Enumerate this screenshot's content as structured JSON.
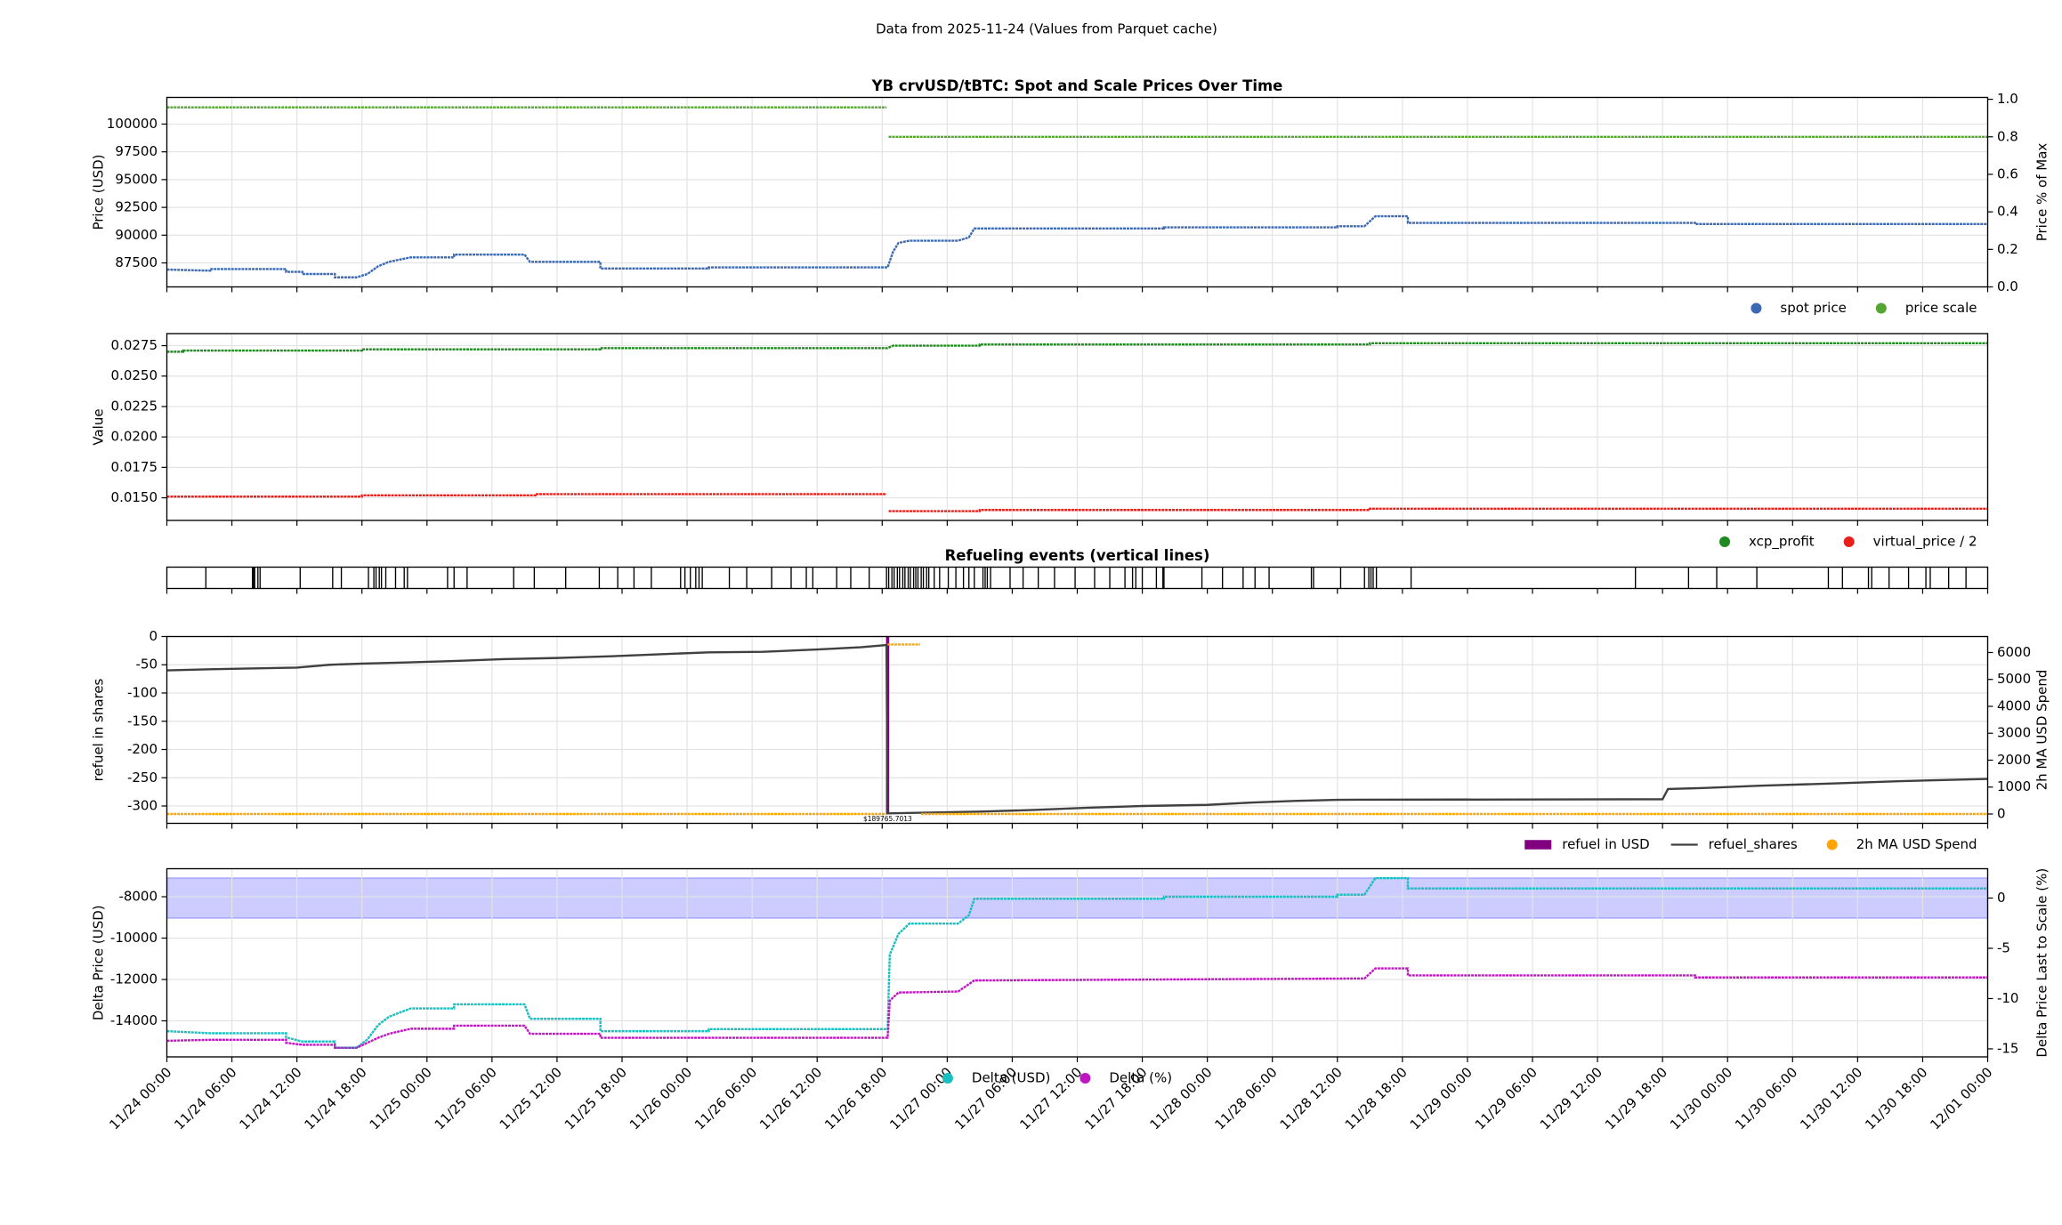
{
  "title": "Data from 2025-11-24 (Values from Parquet cache)",
  "chart_data": [
    {
      "type": "line",
      "title": "YB crvUSD/tBTC: Spot and Scale Prices Over Time",
      "ylabel": "Price (USD)",
      "y2label": "Price % of Max",
      "xlim": [
        0,
        168
      ],
      "ylim": [
        85340,
        102400
      ],
      "yticks": [
        87500,
        90000,
        92500,
        95000,
        97500,
        100000
      ],
      "y2lim": [
        0,
        1.01
      ],
      "y2ticks": [
        {
          "value": 0,
          "label": "0.0"
        },
        0.2,
        0.4,
        0.6,
        0.8,
        {
          "value": 1,
          "label": "1.0"
        }
      ],
      "grid": true,
      "legend": "below right",
      "series": [
        {
          "name": "spot price",
          "color": "#3b6ab3",
          "legend_marker": "dot",
          "x": [
            0,
            4,
            4,
            11,
            11,
            12.5,
            12.5,
            15.5,
            15.5,
            17.5,
            18.5,
            19.5,
            20.5,
            22.5,
            26.5,
            26.5,
            33,
            33.5,
            40,
            40,
            50,
            50,
            66.5,
            67,
            67.5,
            68.5,
            73,
            74,
            74.5,
            92,
            92,
            108,
            108,
            110.5,
            111.5,
            114.5,
            114.5,
            141,
            141,
            168
          ],
          "values": [
            86900,
            86800,
            86950,
            86950,
            86700,
            86700,
            86500,
            86500,
            86200,
            86200,
            86500,
            87200,
            87600,
            88000,
            88000,
            88250,
            88250,
            87600,
            87600,
            87000,
            87000,
            87100,
            87100,
            88500,
            89300,
            89500,
            89500,
            89800,
            90600,
            90600,
            90700,
            90700,
            90800,
            90800,
            91700,
            91700,
            91100,
            91100,
            91000,
            91000
          ]
        },
        {
          "name": "price scale",
          "color": "#55a630",
          "axis": "y2",
          "legend_marker": "dot",
          "x": [
            0,
            66.4,
            66.5,
            66.6,
            168
          ],
          "values": [
            0.957,
            0.957,
            null,
            0.8,
            0.8
          ]
        }
      ]
    },
    {
      "type": "line",
      "ylabel": "Value",
      "xlim": [
        0,
        168
      ],
      "ylim": [
        0.01314,
        0.02849
      ],
      "yticks": [
        {
          "value": 0.015,
          "label": "0.0150"
        },
        0.0175,
        {
          "value": 0.02,
          "label": "0.0200"
        },
        0.0225,
        {
          "value": 0.025,
          "label": "0.0250"
        },
        0.0275
      ],
      "grid": true,
      "legend": "below right",
      "series": [
        {
          "name": "xcp_profit",
          "color": "#1f8a1f",
          "legend_marker": "dot",
          "x": [
            0,
            1.5,
            1.5,
            18,
            18,
            40,
            40,
            66.5,
            67,
            75,
            75,
            111,
            111,
            168
          ],
          "values": [
            0.027,
            0.027,
            0.0271,
            0.0271,
            0.0272,
            0.0272,
            0.0273,
            0.0273,
            0.0275,
            0.0275,
            0.0276,
            0.0276,
            0.0277,
            0.0277
          ]
        },
        {
          "name": "virtual_price / 2",
          "color": "#e8201a",
          "legend_marker": "dot",
          "x": [
            0,
            18,
            18,
            34,
            34,
            66.4,
            66.5,
            66.6,
            75,
            75,
            111,
            111,
            168
          ],
          "values": [
            0.0151,
            0.0151,
            0.0152,
            0.0152,
            0.0153,
            0.0153,
            null,
            0.0139,
            0.0139,
            0.014,
            0.014,
            0.0141,
            0.0141
          ]
        }
      ]
    },
    {
      "type": "events",
      "title": "Refueling events (vertical lines)",
      "xlim": [
        0,
        168
      ],
      "color": "#000000",
      "x": [
        3.6,
        7.9,
        8.0,
        8.1,
        8.4,
        8.6,
        12.3,
        15.3,
        16.1,
        18.6,
        19.1,
        19.3,
        19.6,
        19.8,
        20.2,
        21.1,
        21.9,
        22.2,
        25.9,
        26.5,
        27.7,
        32.0,
        33.9,
        36.8,
        39.9,
        41.6,
        43.1,
        44.7,
        47.4,
        47.8,
        48.3,
        48.8,
        49.1,
        49.4,
        51.9,
        53.5,
        55.8,
        57.6,
        59.0,
        59.6,
        61.8,
        63.1,
        64.8,
        66.4,
        66.6,
        66.9,
        67.1,
        67.4,
        67.6,
        67.9,
        68.1,
        68.4,
        68.6,
        68.9,
        69.1,
        69.3,
        69.6,
        69.8,
        70.1,
        70.3,
        70.8,
        71.3,
        72.1,
        72.8,
        73.5,
        74.0,
        74.5,
        75.3,
        75.5,
        75.7,
        76.0,
        77.8,
        79.0,
        80.4,
        81.9,
        83.8,
        85.6,
        87.0,
        88.4,
        89.1,
        89.4,
        90.0,
        91.3,
        91.9,
        92.0,
        95.5,
        97.4,
        99.3,
        100.4,
        101.7,
        105.6,
        105.8,
        108.3,
        110.5,
        110.9,
        111.1,
        111.3,
        111.6,
        114.8,
        135.5,
        140.4,
        143.0,
        146.7,
        153.3,
        154.6,
        157.0,
        157.3,
        158.9,
        160.7,
        162.3,
        162.7,
        164.4,
        166.0
      ]
    },
    {
      "type": "line",
      "ylabel": "refuel in shares",
      "y2label": "2h MA USD Spend",
      "y2label_color": "#ffa500",
      "xlim": [
        0,
        168
      ],
      "ylim": [
        -330.7,
        0
      ],
      "yticks": [
        -300,
        -250,
        -200,
        -150,
        -100,
        -50,
        0
      ],
      "y2lim": [
        -347,
        6594
      ],
      "y2ticks": [
        0,
        1000,
        2000,
        3000,
        4000,
        5000,
        6000
      ],
      "grid": true,
      "legend": "below right",
      "series": [
        {
          "name": "refuel in USD",
          "color": "#800080",
          "type": "bar",
          "axis": "y2",
          "legend_marker": "rect",
          "x": [
            66.5
          ],
          "values": [
            189765.7013
          ],
          "value_labels": [
            "$189765.7013"
          ]
        },
        {
          "name": "refuel_shares",
          "color": "#404040",
          "legend_marker": "line",
          "x": [
            0,
            4,
            12,
            15,
            18,
            22,
            27,
            31,
            36,
            41,
            46,
            50,
            55,
            60,
            64,
            66.4,
            66.5,
            75,
            80,
            85,
            90,
            96,
            100,
            104,
            108,
            138,
            138.5,
            142,
            147,
            154,
            160,
            168
          ],
          "values": [
            -60,
            -58,
            -55,
            -50,
            -48,
            -46,
            -43,
            -40,
            -38,
            -35,
            -31,
            -28,
            -27,
            -23,
            -19,
            -15,
            -313,
            -310,
            -307,
            -303,
            -300,
            -298,
            -294,
            -291,
            -289,
            -288,
            -270,
            -268,
            -264,
            -260,
            -256,
            -252
          ]
        },
        {
          "name": "2h MA USD Spend",
          "color": "#ffa500",
          "axis": "y2",
          "legend_marker": "dot",
          "x": [
            0,
            66.4,
            66.45,
            66.5,
            69.5,
            69.55,
            69.6,
            168
          ],
          "values": [
            0,
            0,
            null,
            6300,
            6300,
            null,
            0,
            0
          ]
        }
      ]
    },
    {
      "type": "line",
      "ylabel": "Delta Price (USD)",
      "ylabel_color": "#17bfbf",
      "y2label": "Delta Price Last to Scale (%)",
      "y2label_color": "#bf17bf",
      "xlim": [
        0,
        168
      ],
      "ylim": [
        -15742,
        -6645
      ],
      "yticks": [
        -14000,
        -12000,
        -10000,
        -8000
      ],
      "y2lim": [
        -15.8,
        2.92
      ],
      "y2ticks": [
        -15,
        -10,
        -5,
        0
      ],
      "band": [
        -2,
        2
      ],
      "band_color": "#0000ff",
      "grid": true,
      "legend": "below center",
      "xticks": [
        {
          "value": 0,
          "label": "11/24 00:00"
        },
        {
          "value": 6,
          "label": "11/24 06:00"
        },
        {
          "value": 12,
          "label": "11/24 12:00"
        },
        {
          "value": 18,
          "label": "11/24 18:00"
        },
        {
          "value": 24,
          "label": "11/25 00:00"
        },
        {
          "value": 30,
          "label": "11/25 06:00"
        },
        {
          "value": 36,
          "label": "11/25 12:00"
        },
        {
          "value": 42,
          "label": "11/25 18:00"
        },
        {
          "value": 48,
          "label": "11/26 00:00"
        },
        {
          "value": 54,
          "label": "11/26 06:00"
        },
        {
          "value": 60,
          "label": "11/26 12:00"
        },
        {
          "value": 66,
          "label": "11/26 18:00"
        },
        {
          "value": 72,
          "label": "11/27 00:00"
        },
        {
          "value": 78,
          "label": "11/27 06:00"
        },
        {
          "value": 84,
          "label": "11/27 12:00"
        },
        {
          "value": 90,
          "label": "11/27 18:00"
        },
        {
          "value": 96,
          "label": "11/28 00:00"
        },
        {
          "value": 102,
          "label": "11/28 06:00"
        },
        {
          "value": 108,
          "label": "11/28 12:00"
        },
        {
          "value": 114,
          "label": "11/28 18:00"
        },
        {
          "value": 120,
          "label": "11/29 00:00"
        },
        {
          "value": 126,
          "label": "11/29 06:00"
        },
        {
          "value": 132,
          "label": "11/29 12:00"
        },
        {
          "value": 138,
          "label": "11/29 18:00"
        },
        {
          "value": 144,
          "label": "11/30 00:00"
        },
        {
          "value": 150,
          "label": "11/30 06:00"
        },
        {
          "value": 156,
          "label": "11/30 12:00"
        },
        {
          "value": 162,
          "label": "11/30 18:00"
        },
        {
          "value": 168,
          "label": "12/01 00:00"
        }
      ],
      "series": [
        {
          "name": "Delta (USD)",
          "color": "#17bfbf",
          "legend_marker": "dot",
          "x": [
            0,
            4,
            11,
            11,
            12.5,
            15.5,
            15.5,
            17.5,
            18.5,
            19.5,
            20.5,
            22.5,
            26.5,
            26.5,
            33,
            33.5,
            40,
            40,
            50,
            50,
            66.5,
            66.7,
            67.5,
            68.5,
            73,
            74,
            74.5,
            92,
            92,
            108,
            108,
            110.5,
            111.5,
            114.5,
            114.5,
            168
          ],
          "values": [
            -14500,
            -14600,
            -14600,
            -14800,
            -15000,
            -15000,
            -15300,
            -15300,
            -14900,
            -14200,
            -13800,
            -13400,
            -13400,
            -13200,
            -13200,
            -13900,
            -13900,
            -14500,
            -14500,
            -14400,
            -14400,
            -10800,
            -9800,
            -9300,
            -9300,
            -8900,
            -8100,
            -8100,
            -8000,
            -8000,
            -7900,
            -7900,
            -7100,
            -7100,
            -7600,
            -7600
          ]
        },
        {
          "name": "Delta (%)",
          "color": "#bf17bf",
          "axis": "y2",
          "legend_marker": "dot",
          "x": [
            0,
            4,
            11,
            11,
            12.5,
            15.5,
            15.5,
            17.5,
            18.5,
            19.5,
            20.5,
            22.5,
            26.5,
            26.5,
            33,
            33.5,
            40,
            40,
            66.5,
            66.7,
            67.5,
            73,
            74.5,
            92,
            110.5,
            111.5,
            114.5,
            114.5,
            141,
            141,
            168
          ],
          "values": [
            -14.2,
            -14.1,
            -14.1,
            -14.4,
            -14.6,
            -14.6,
            -14.9,
            -14.9,
            -14.4,
            -13.9,
            -13.5,
            -13.0,
            -13.0,
            -12.7,
            -12.7,
            -13.5,
            -13.5,
            -13.9,
            -13.9,
            -10.2,
            -9.4,
            -9.3,
            -8.2,
            -8.1,
            -8.0,
            -7.0,
            -7.0,
            -7.7,
            -7.7,
            -7.9,
            -7.9
          ]
        }
      ]
    }
  ]
}
